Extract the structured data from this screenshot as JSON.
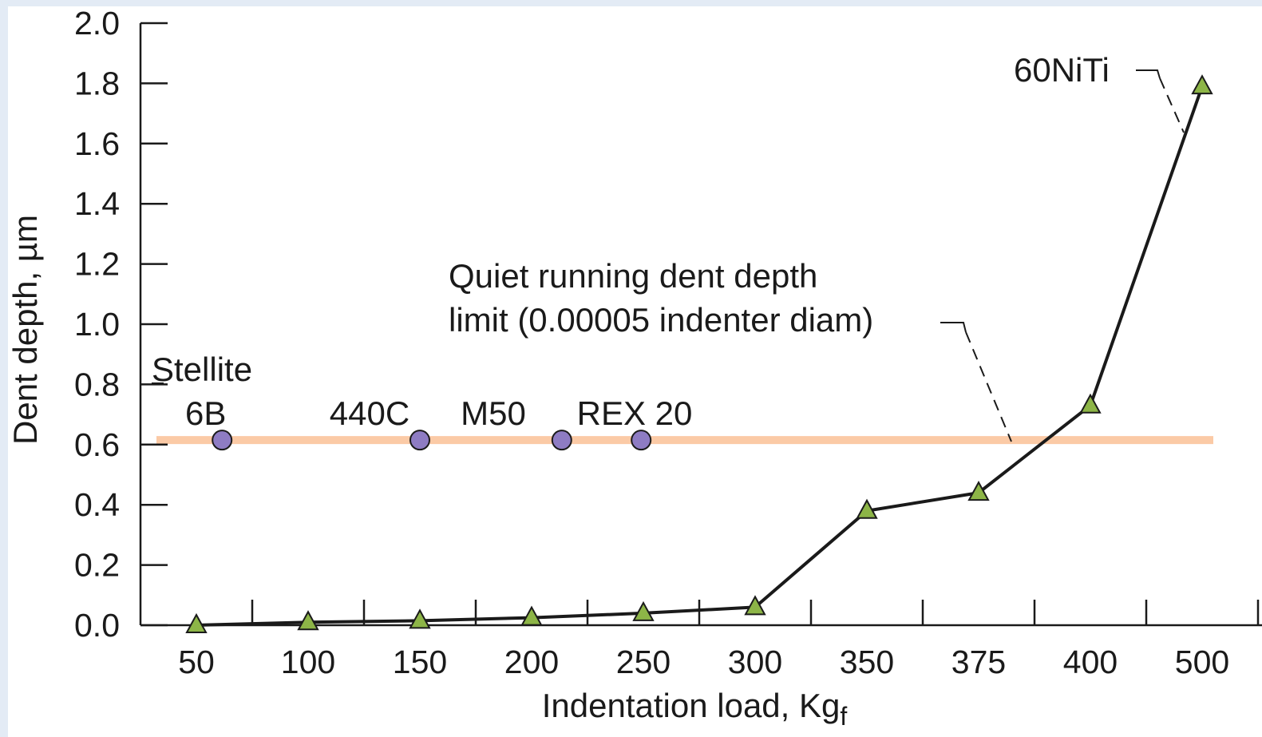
{
  "chart_data": {
    "type": "line",
    "categories": [
      "50",
      "100",
      "150",
      "200",
      "250",
      "300",
      "350",
      "375",
      "400",
      "500"
    ],
    "xlabel": "Indentation load, Kg",
    "xlabel_subscript": "f",
    "ylabel": "Dent depth, µm",
    "ylim": [
      0,
      2.0
    ],
    "yticks": [
      "0.0",
      "0.2",
      "0.4",
      "0.6",
      "0.8",
      "1.0",
      "1.2",
      "1.4",
      "1.6",
      "1.8",
      "2.0"
    ],
    "grid": false,
    "series": [
      {
        "name": "60NiTi",
        "marker": "triangle",
        "color": "#8db547",
        "line_color": "#1a1a1a",
        "values": [
          0.0,
          0.01,
          0.015,
          0.025,
          0.04,
          0.06,
          0.38,
          0.44,
          0.73,
          1.79
        ]
      }
    ],
    "reference_points": {
      "marker": "circle",
      "color": "#8e7cc3",
      "value": 0.615,
      "points": [
        {
          "label_lines": [
            "Stellite",
            "6B"
          ],
          "x_pos": 0.23
        },
        {
          "label_lines": [
            "440C"
          ],
          "x_pos": 2.0
        },
        {
          "label_lines": [
            "M50"
          ],
          "x_pos": 3.27
        },
        {
          "label_lines": [
            "REX 20"
          ],
          "x_pos": 3.98
        }
      ]
    },
    "limit_line": {
      "value": 0.615,
      "color": "#fbcaa6",
      "label_lines": [
        "Quiet running dent depth",
        "limit (0.00005 indenter diam)"
      ]
    }
  }
}
